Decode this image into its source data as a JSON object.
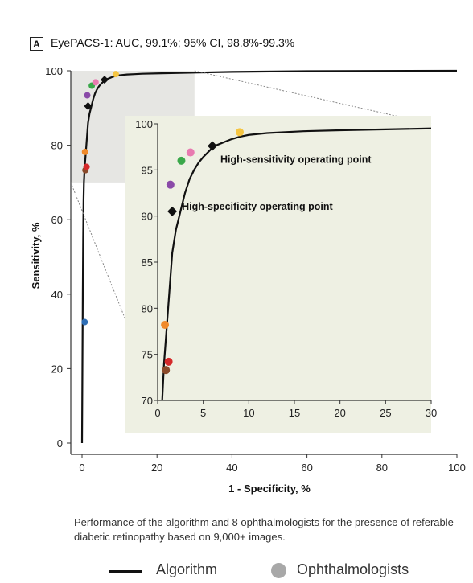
{
  "panel": {
    "label": "A",
    "title": "EyePACS-1: AUC, 99.1%; 95% CI, 98.8%-99.3%"
  },
  "chart_data": {
    "type": "line",
    "title": "EyePACS-1: AUC, 99.1%; 95% CI, 98.8%-99.3%",
    "xlabel": "1 - Specificity, %",
    "ylabel": "Sensitivity, %",
    "xlim": [
      0,
      100
    ],
    "ylim": [
      0,
      100
    ],
    "xticks": [
      0,
      20,
      40,
      60,
      80,
      100
    ],
    "yticks": [
      0,
      20,
      40,
      60,
      80,
      100
    ],
    "grid": false,
    "series": [
      {
        "name": "Algorithm",
        "color": "#111111",
        "x": [
          0,
          0.1,
          0.2,
          0.3,
          0.4,
          0.5,
          0.7,
          1.0,
          1.3,
          1.6,
          2.0,
          2.5,
          3.0,
          3.5,
          4.0,
          4.5,
          5.0,
          5.5,
          6.0,
          6.5,
          7,
          7.5,
          8,
          9,
          10,
          11,
          12,
          14,
          16,
          20,
          25,
          30,
          40,
          60,
          100
        ],
        "y": [
          0,
          20,
          40,
          55,
          65,
          70,
          74,
          78,
          82,
          86,
          88.5,
          90.5,
          92.5,
          94,
          95,
          95.8,
          96.4,
          96.9,
          97.4,
          97.7,
          97.9,
          98.1,
          98.3,
          98.6,
          98.8,
          98.9,
          99,
          99.1,
          99.2,
          99.3,
          99.4,
          99.5,
          99.7,
          99.9,
          100
        ]
      }
    ],
    "operating_points": [
      {
        "label": "High-sensitivity operating point",
        "x": 6.0,
        "y": 97.6
      },
      {
        "label": "High-specificity operating point",
        "x": 1.6,
        "y": 90.5
      }
    ],
    "ophthalmologists": [
      {
        "x": 0.7,
        "y": 32.5,
        "color": "#2f6eb5"
      },
      {
        "x": 0.9,
        "y": 73.3,
        "color": "#8a4a2a"
      },
      {
        "x": 1.2,
        "y": 74.2,
        "color": "#d42a2a"
      },
      {
        "x": 0.8,
        "y": 78.2,
        "color": "#f08a2a"
      },
      {
        "x": 1.4,
        "y": 93.4,
        "color": "#8a4aa8"
      },
      {
        "x": 2.6,
        "y": 96.0,
        "color": "#3aa84a"
      },
      {
        "x": 3.6,
        "y": 96.9,
        "color": "#e87ab0"
      },
      {
        "x": 9.0,
        "y": 99.1,
        "color": "#f5c542"
      }
    ],
    "inset": {
      "xlim": [
        0,
        30
      ],
      "ylim": [
        70,
        100
      ],
      "xticks": [
        0,
        5,
        10,
        15,
        20,
        25,
        30
      ],
      "yticks": [
        70,
        75,
        80,
        85,
        90,
        95,
        100
      ]
    },
    "zoom_region": {
      "x": [
        0,
        30
      ],
      "y": [
        70,
        100
      ]
    }
  },
  "caption": "Performance of the algorithm and 8 ophthalmologists for the presence of referable diabetic retinopathy based on 9,000+ images.",
  "legend": {
    "algorithm_label": "Algorithm",
    "ophthalmologists_label": "Ophthalmologists",
    "dot_color": "#a8a8a8"
  },
  "colors": {
    "zoom_fill": "#e6e6e3",
    "inset_fill": "#eef0e3",
    "guide_line": "#888888"
  }
}
